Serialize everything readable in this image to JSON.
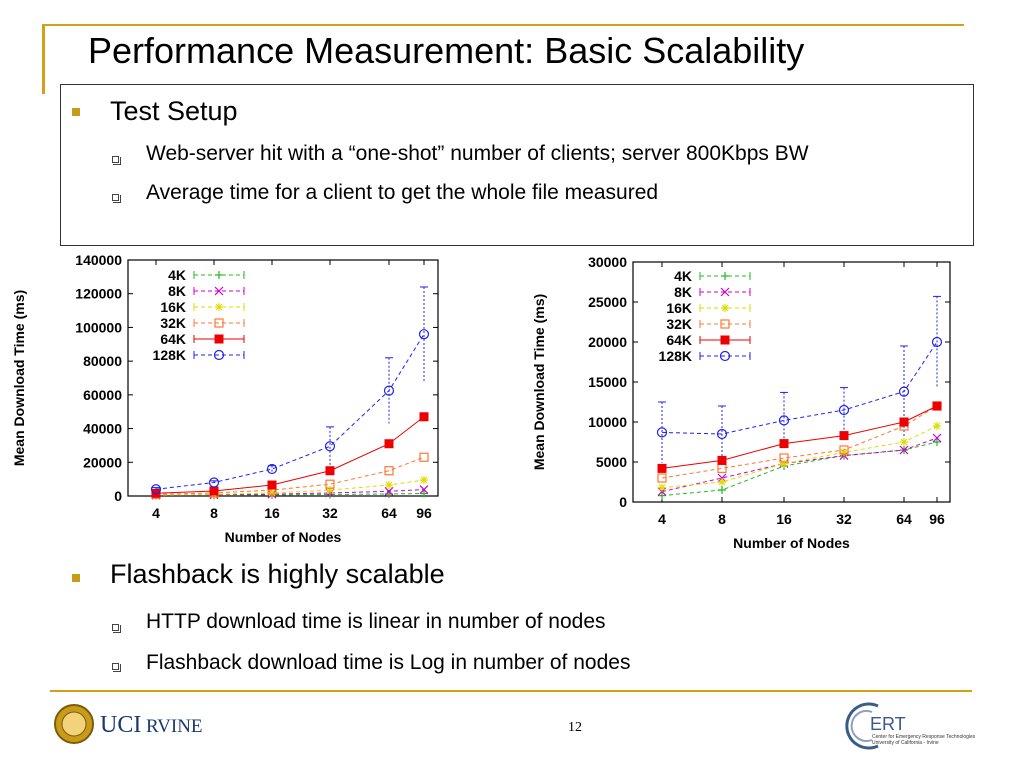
{
  "slide": {
    "title": "Performance Measurement: Basic Scalability",
    "page_number": "12"
  },
  "setup": {
    "heading": "Test Setup",
    "items": [
      "Web-server hit with a “one-shot” number of clients; server 800Kbps BW",
      "Average time for a client to get the whole file measured"
    ]
  },
  "conclusion": {
    "heading": "Flashback is highly scalable",
    "items": [
      "HTTP download time is linear in number of nodes",
      "Flashback download time is Log in number of nodes"
    ]
  },
  "logos": {
    "uci_text_a": "UCI",
    "uci_text_b": "RVINE",
    "ert_text": "ERT",
    "ert_sub1": "Center for Emergency Response Technologies",
    "ert_sub2": "University of California - Irvine"
  },
  "colors": {
    "gold": "#d4a017",
    "4K": "#22bb22",
    "8K": "#cc00cc",
    "16K": "#dddd00",
    "32K": "#ff7733",
    "64K": "#ee0000",
    "128K": "#2222ee",
    "fit": "#555555"
  },
  "chart_data": [
    {
      "type": "line",
      "xlabel": "Number of Nodes",
      "ylabel": "Mean Download Time (ms)",
      "categories": [
        "4",
        "8",
        "16",
        "32",
        "64",
        "96"
      ],
      "ylim": [
        0,
        140000
      ],
      "yticks": [
        "0",
        "20000",
        "40000",
        "60000",
        "80000",
        "100000",
        "120000",
        "140000"
      ],
      "legend_position": "top-left",
      "series": [
        {
          "name": "4K",
          "values": [
            300,
            400,
            600,
            900,
            1200,
            1500
          ]
        },
        {
          "name": "8K",
          "values": [
            400,
            700,
            1100,
            1800,
            2800,
            3800
          ]
        },
        {
          "name": "16K",
          "values": [
            600,
            1000,
            1800,
            3500,
            6500,
            9500
          ]
        },
        {
          "name": "32K",
          "values": [
            1000,
            1800,
            3500,
            7000,
            15000,
            23000
          ]
        },
        {
          "name": "64K",
          "values": [
            1600,
            3000,
            6500,
            15000,
            31000,
            47000
          ]
        },
        {
          "name": "128K",
          "values": [
            4000,
            8000,
            16000,
            29500,
            62500,
            96000
          ]
        }
      ],
      "error_top_128K": [
        5000,
        9000,
        18000,
        41000,
        82000,
        124000
      ]
    },
    {
      "type": "line",
      "xlabel": "Number of Nodes",
      "ylabel": "Mean Download Time (ms)",
      "categories": [
        "4",
        "8",
        "16",
        "32",
        "64",
        "96"
      ],
      "ylim": [
        0,
        30000
      ],
      "yticks": [
        "0",
        "5000",
        "10000",
        "15000",
        "20000",
        "25000",
        "30000"
      ],
      "legend_position": "top-right",
      "series": [
        {
          "name": "4K",
          "values": [
            800,
            1500,
            4500,
            5800,
            6500,
            7500
          ]
        },
        {
          "name": "8K",
          "values": [
            1300,
            3000,
            4800,
            5800,
            6500,
            8000
          ]
        },
        {
          "name": "16K",
          "values": [
            1800,
            2500,
            4800,
            6200,
            7500,
            9500
          ]
        },
        {
          "name": "32K",
          "values": [
            3000,
            4200,
            5500,
            6500,
            9500,
            12000
          ]
        },
        {
          "name": "64K",
          "values": [
            4200,
            5200,
            7300,
            8300,
            10000,
            12000
          ]
        },
        {
          "name": "128K",
          "values": [
            8700,
            8500,
            10200,
            11500,
            13800,
            20000
          ]
        }
      ],
      "error_top_128K": [
        12500,
        12000,
        13700,
        14300,
        19500,
        25700
      ]
    }
  ]
}
